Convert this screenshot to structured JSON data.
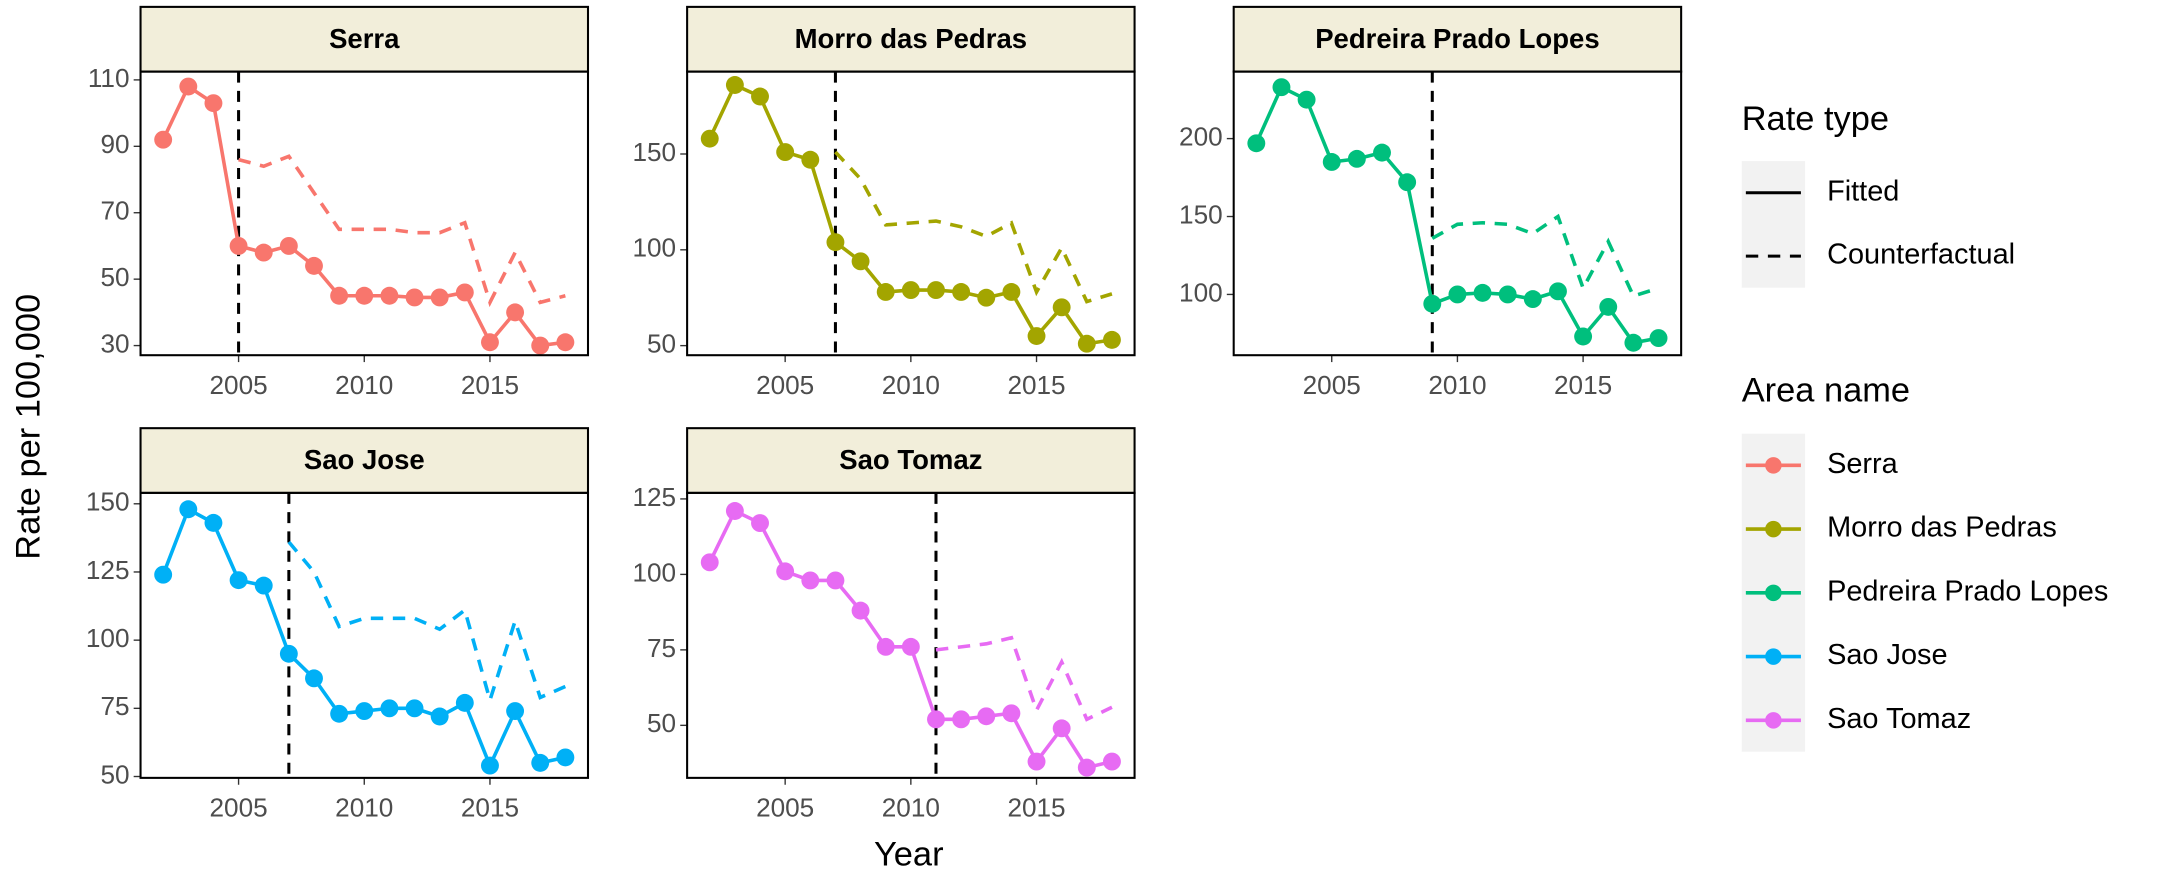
{
  "chart_data": {
    "type": "line",
    "xlabel": "Year",
    "ylabel": "Rate per 100,000",
    "xlim": [
      2001.1,
      2018.9
    ],
    "xticks": [
      2005,
      2010,
      2015
    ],
    "rate_legend_title": "Rate type",
    "area_legend_title": "Area name",
    "panels": [
      {
        "title": "Serra",
        "color": "#F8766D",
        "ylim": [
          27.1,
          112.5
        ],
        "yticks": [
          30,
          50,
          70,
          90,
          110
        ],
        "intervention": 2005,
        "series": [
          {
            "name": "Fitted",
            "dash": "solid",
            "x": [
              2002,
              2003,
              2004,
              2005,
              2006,
              2007,
              2008,
              2009,
              2010,
              2011,
              2012,
              2013,
              2014,
              2015,
              2016,
              2017,
              2018
            ],
            "values": [
              92,
              108,
              103,
              60,
              58,
              60,
              54,
              45,
              45,
              45,
              44.5,
              44.5,
              46,
              31,
              40,
              30,
              31
            ]
          },
          {
            "name": "Counterfactual",
            "dash": "dashed",
            "x": [
              2005,
              2006,
              2007,
              2008,
              2009,
              2010,
              2011,
              2012,
              2013,
              2014,
              2015,
              2016,
              2017,
              2018
            ],
            "values": [
              86,
              84,
              87,
              76,
              65,
              65,
              65,
              64,
              64,
              67,
              43,
              58,
              43,
              45
            ]
          }
        ]
      },
      {
        "title": "Morro das Pedras",
        "color": "#A3A500",
        "ylim": [
          45,
          193
        ],
        "yticks": [
          50,
          100,
          150
        ],
        "intervention": 2007,
        "series": [
          {
            "name": "Fitted",
            "dash": "solid",
            "x": [
              2002,
              2003,
              2004,
              2005,
              2006,
              2007,
              2008,
              2009,
              2010,
              2011,
              2012,
              2013,
              2014,
              2015,
              2016,
              2017,
              2018
            ],
            "values": [
              158,
              186,
              180,
              151,
              147,
              104,
              94,
              78,
              79,
              79,
              78,
              75,
              78,
              55,
              70,
              51,
              53
            ]
          },
          {
            "name": "Counterfactual",
            "dash": "dashed",
            "x": [
              2007,
              2008,
              2009,
              2010,
              2011,
              2012,
              2013,
              2014,
              2015,
              2016,
              2017,
              2018
            ],
            "values": [
              151,
              137,
              113,
              114,
              115,
              112,
              107,
              114,
              78,
              101,
              73,
              77
            ]
          }
        ]
      },
      {
        "title": "Pedreira Prado Lopes",
        "color": "#00BF7D",
        "ylim": [
          61,
          243
        ],
        "yticks": [
          100,
          150,
          200
        ],
        "intervention": 2009,
        "series": [
          {
            "name": "Fitted",
            "dash": "solid",
            "x": [
              2002,
              2003,
              2004,
              2005,
              2006,
              2007,
              2008,
              2009,
              2010,
              2011,
              2012,
              2013,
              2014,
              2015,
              2016,
              2017,
              2018
            ],
            "values": [
              197,
              233,
              225,
              185,
              187,
              191,
              172,
              94,
              100,
              101,
              100,
              97,
              102,
              73,
              92,
              69,
              72
            ]
          },
          {
            "name": "Counterfactual",
            "dash": "dashed",
            "x": [
              2009,
              2010,
              2011,
              2012,
              2013,
              2014,
              2015,
              2016,
              2017,
              2018
            ],
            "values": [
              136,
              145,
              146,
              145,
              139,
              150,
              104,
              134,
              99,
              104
            ]
          }
        ]
      },
      {
        "title": "Sao Jose",
        "color": "#00B0F6",
        "ylim": [
          49.5,
          154
        ],
        "yticks": [
          50,
          75,
          100,
          125,
          150
        ],
        "intervention": 2007,
        "series": [
          {
            "name": "Fitted",
            "dash": "solid",
            "x": [
              2002,
              2003,
              2004,
              2005,
              2006,
              2007,
              2008,
              2009,
              2010,
              2011,
              2012,
              2013,
              2014,
              2015,
              2016,
              2017,
              2018
            ],
            "values": [
              124,
              148,
              143,
              122,
              120,
              95,
              86,
              73,
              74,
              75,
              75,
              72,
              77,
              54,
              74,
              55,
              57
            ]
          },
          {
            "name": "Counterfactual",
            "dash": "dashed",
            "x": [
              2007,
              2008,
              2009,
              2010,
              2011,
              2012,
              2013,
              2014,
              2015,
              2016,
              2017,
              2018
            ],
            "values": [
              136,
              125,
              105,
              108,
              108,
              108,
              104,
              111,
              78,
              107,
              79,
              83
            ]
          }
        ]
      },
      {
        "title": "Sao Tomaz",
        "color": "#E76BF3",
        "ylim": [
          32.6,
          127
        ],
        "yticks": [
          50,
          75,
          100,
          125
        ],
        "intervention": 2011,
        "series": [
          {
            "name": "Fitted",
            "dash": "solid",
            "x": [
              2002,
              2003,
              2004,
              2005,
              2006,
              2007,
              2008,
              2009,
              2010,
              2011,
              2012,
              2013,
              2014,
              2015,
              2016,
              2017,
              2018
            ],
            "values": [
              104,
              121,
              117,
              101,
              98,
              98,
              88,
              76,
              76,
              52,
              52,
              53,
              54,
              38,
              49,
              36,
              38
            ]
          },
          {
            "name": "Counterfactual",
            "dash": "dashed",
            "x": [
              2011,
              2012,
              2013,
              2014,
              2015,
              2016,
              2017,
              2018
            ],
            "values": [
              75,
              76,
              77,
              79,
              55,
              71,
              52,
              56
            ]
          }
        ]
      }
    ]
  }
}
